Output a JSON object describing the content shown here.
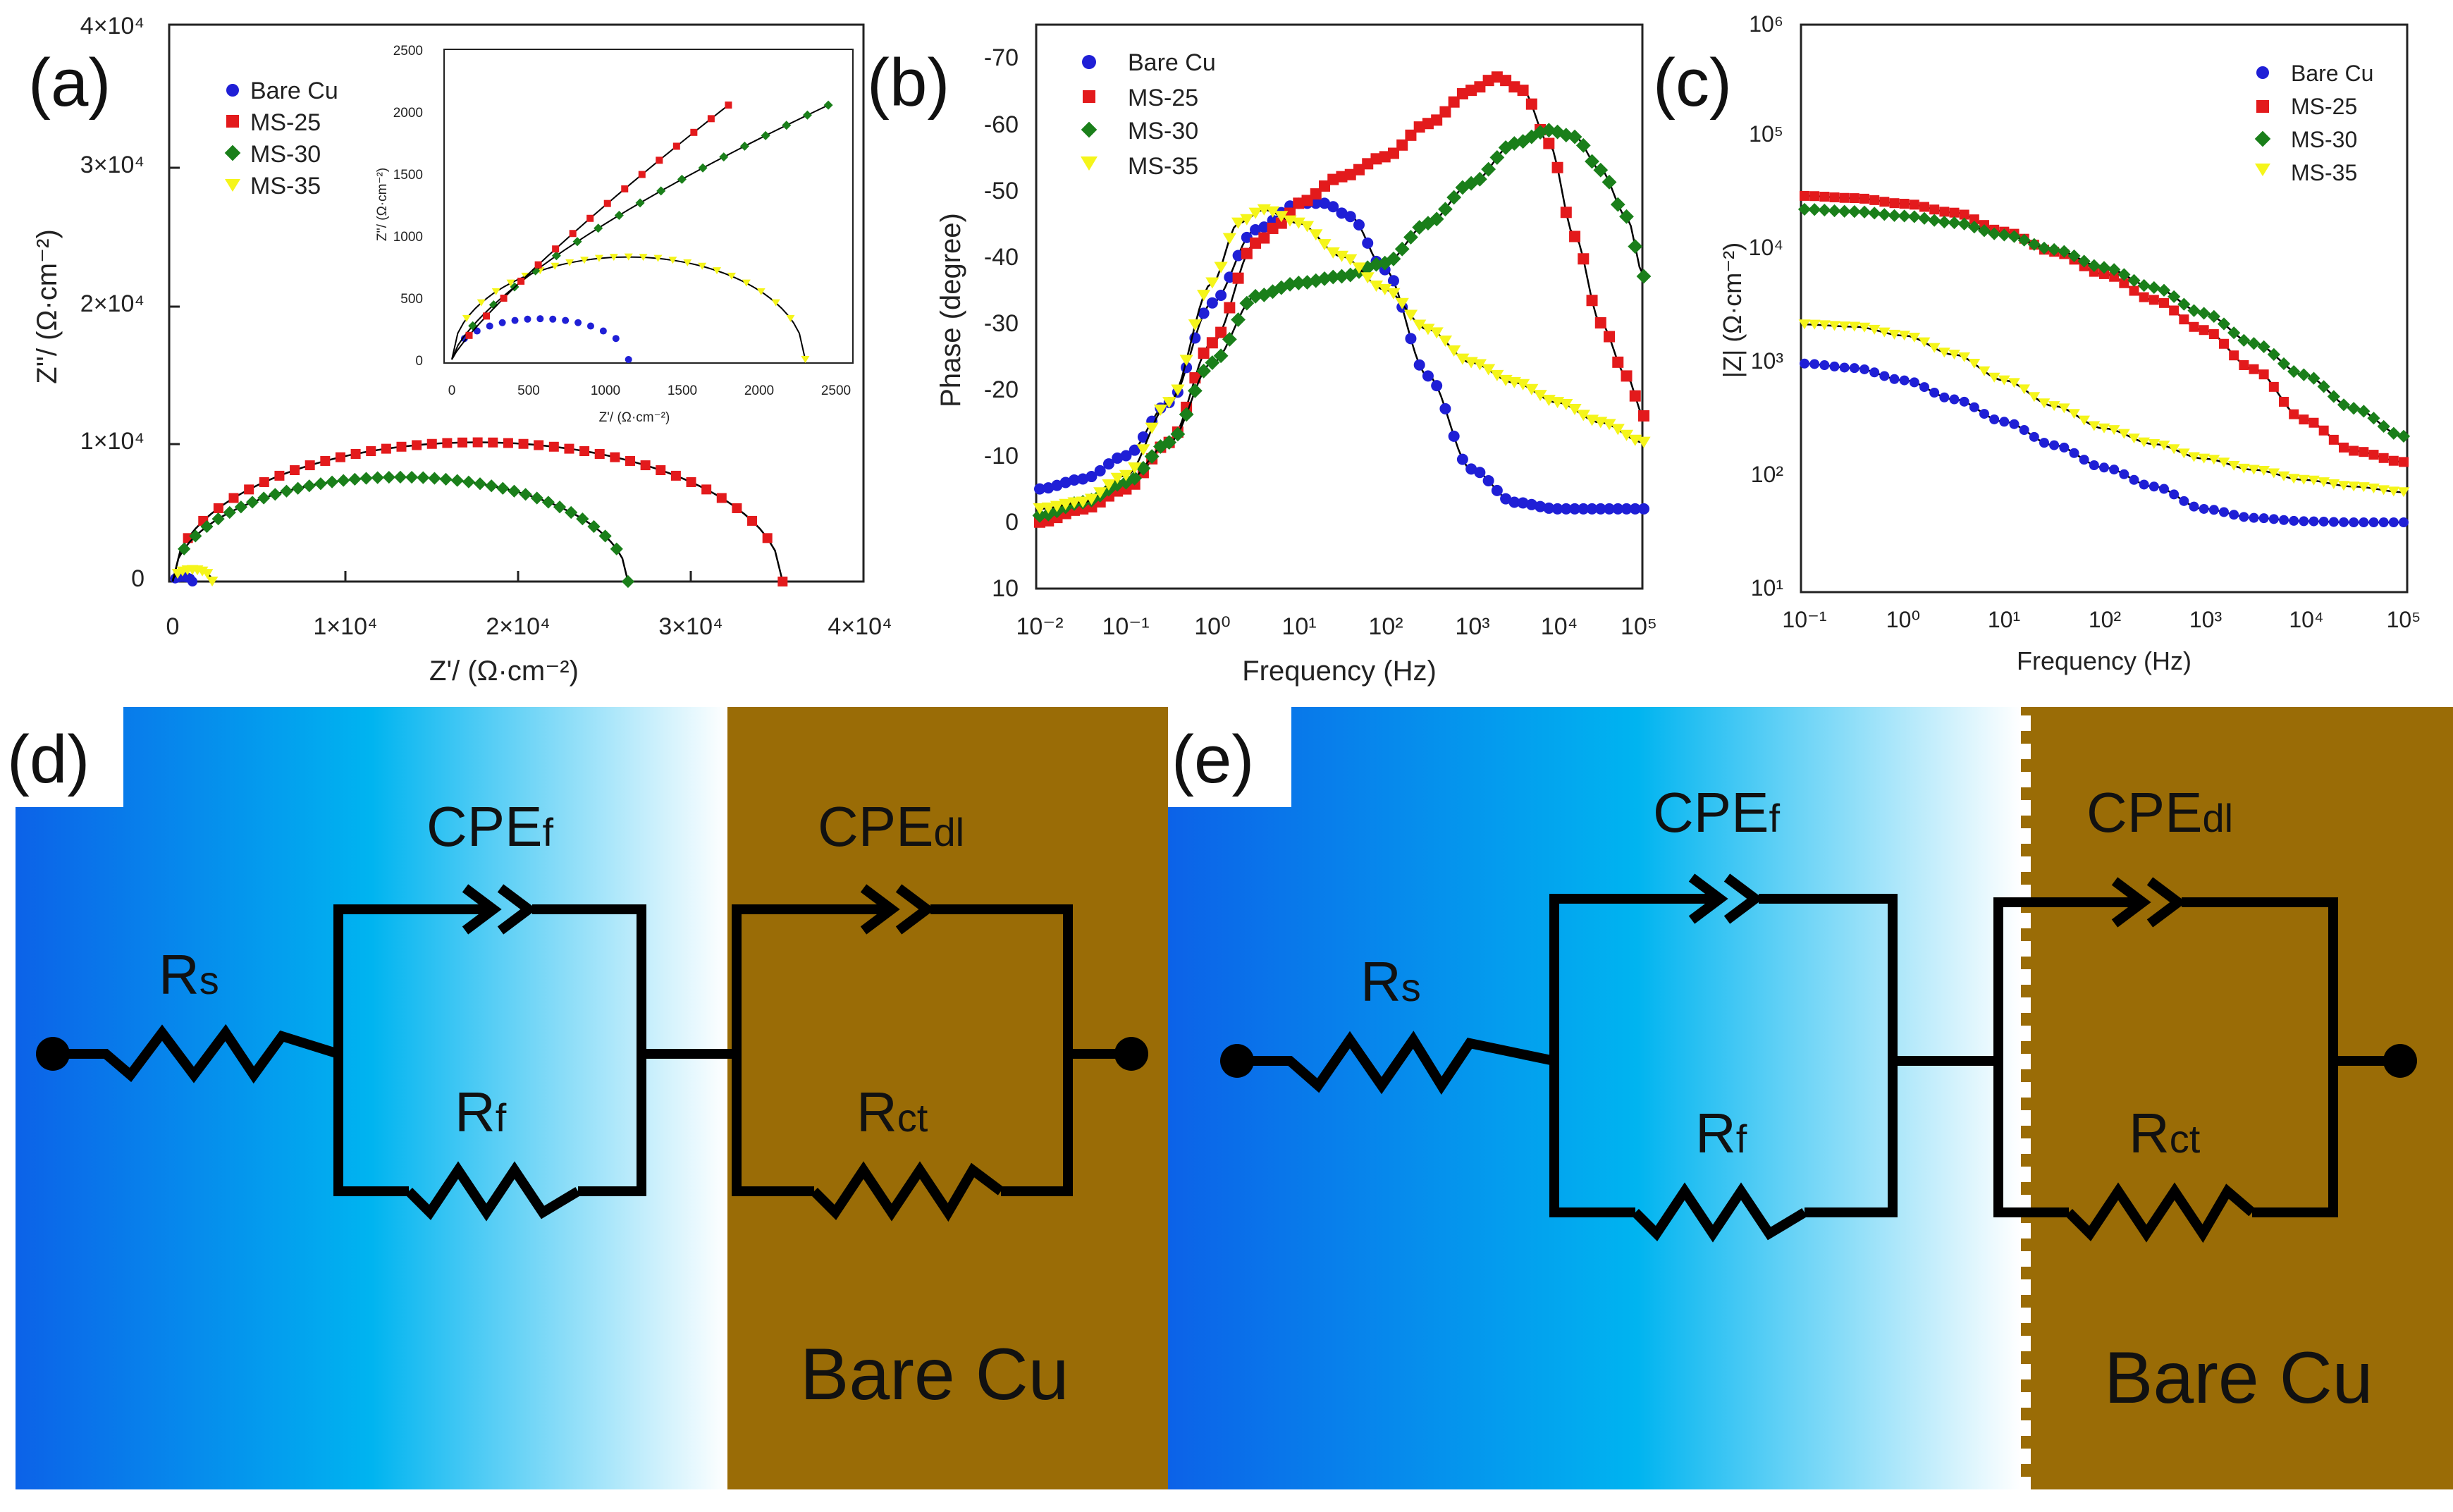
{
  "colors": {
    "bare": "#1f1fd6",
    "ms25": "#e31a1c",
    "ms30": "#1a7f1a",
    "ms35": "#f5f51a",
    "copper": "#9a6c06",
    "blue_dark": "#0c62e8",
    "blue_mid": "#00b4f0",
    "fit": "#000000"
  },
  "panels": {
    "a": {
      "tag": "(a)"
    },
    "b": {
      "tag": "(b)"
    },
    "c": {
      "tag": "(c)"
    },
    "d": {
      "tag": "(d)"
    },
    "e": {
      "tag": "(e)"
    }
  },
  "chart_data": [
    {
      "id": "a",
      "type": "scatter",
      "xlabel": "Z'/ (Ω·cm⁻²)",
      "ylabel": "Z''/ (Ω·cm⁻²)",
      "xlim": [
        0,
        40000
      ],
      "ylim": [
        0,
        40000
      ],
      "xticks": [
        "0",
        "1×10⁴",
        "2×10⁴",
        "3×10⁴",
        "4×10⁴"
      ],
      "yticks": [
        "0",
        "1×10⁴",
        "2×10⁴",
        "3×10⁴",
        "4×10⁴"
      ],
      "legend": [
        "Bare Cu",
        "MS-25",
        "MS-30",
        "MS-35"
      ],
      "series": [
        {
          "name": "Bare Cu",
          "kind": "arc",
          "x0": 0,
          "x1": 1150,
          "peak": 330
        },
        {
          "name": "MS-25",
          "kind": "arc",
          "x0": 0,
          "x1": 35500,
          "peak": 10000
        },
        {
          "name": "MS-30",
          "kind": "arc",
          "x0": 0,
          "x1": 26500,
          "peak": 7500
        },
        {
          "name": "MS-35",
          "kind": "arc",
          "x0": 0,
          "x1": 2300,
          "peak": 830
        }
      ],
      "inset": {
        "xlabel": "Z'/ (Ω·cm⁻²)",
        "ylabel": "Z''/ (Ω·cm⁻²)",
        "xlim": [
          0,
          2500
        ],
        "ylim": [
          0,
          2500
        ],
        "xticks": [
          "0",
          "500",
          "1000",
          "1500",
          "2000",
          "2500"
        ],
        "yticks": [
          "0",
          "500",
          "1000",
          "1500",
          "2000",
          "2500"
        ]
      }
    },
    {
      "id": "b",
      "type": "scatter",
      "xlabel": "Frequency (Hz)",
      "ylabel": "Phase (degree)",
      "xlim_log10": [
        -2,
        5
      ],
      "ylim": [
        10,
        -70
      ],
      "xticks": [
        "10⁻²",
        "10⁻¹",
        "10⁰",
        "10¹",
        "10²",
        "10³",
        "10⁴",
        "10⁵"
      ],
      "yticks": [
        "-70",
        "-60",
        "-50",
        "-40",
        "-30",
        "-20",
        "-10",
        "0",
        "10"
      ],
      "legend": [
        "Bare Cu",
        "MS-25",
        "MS-30",
        "MS-35"
      ],
      "series": [
        {
          "name": "Bare Cu",
          "logf": [
            -2,
            -1.5,
            -1,
            -0.5,
            0,
            0.5,
            1,
            1.3,
            1.6,
            2,
            2.5,
            3,
            3.5,
            4,
            4.5,
            5
          ],
          "phase": [
            -5,
            -6.5,
            -10,
            -18,
            -33,
            -44,
            -48,
            -48,
            -46,
            -38,
            -22,
            -8,
            -3,
            -2,
            -2,
            -2
          ]
        },
        {
          "name": "MS-25",
          "logf": [
            -2,
            -1.5,
            -1,
            -0.5,
            0,
            0.5,
            0.8,
            1,
            1.5,
            2,
            2.5,
            3,
            3.3,
            3.6,
            3.9,
            4.2,
            4.5,
            4.8,
            5
          ],
          "phase": [
            0,
            -2,
            -5,
            -12,
            -27,
            -42,
            -45,
            -48,
            -52,
            -55,
            -60,
            -65,
            -67,
            -65,
            -57,
            -43,
            -30,
            -22,
            -16
          ]
        },
        {
          "name": "MS-30",
          "logf": [
            -2,
            -1.5,
            -1,
            -0.5,
            0,
            0.5,
            1,
            1.5,
            2,
            2.5,
            3,
            3.5,
            3.9,
            4.2,
            4.5,
            4.8,
            5
          ],
          "phase": [
            -1,
            -3,
            -6,
            -12,
            -24,
            -34,
            -36,
            -37,
            -39,
            -45,
            -51,
            -57,
            -59,
            -58,
            -53,
            -46,
            -37
          ]
        },
        {
          "name": "MS-35",
          "logf": [
            -2,
            -1.5,
            -1,
            -0.5,
            0,
            0.3,
            0.6,
            1,
            1.5,
            2,
            2.5,
            3,
            3.5,
            4,
            4.5,
            5
          ],
          "phase": [
            -2,
            -3,
            -7,
            -18,
            -36,
            -45,
            -47,
            -45,
            -40,
            -35,
            -29,
            -24,
            -21,
            -18,
            -15,
            -12
          ]
        }
      ]
    },
    {
      "id": "c",
      "type": "scatter",
      "xlabel": "Frequency (Hz)",
      "ylabel": "|Z| (Ω·cm⁻²)",
      "xlim_log10": [
        -1,
        5
      ],
      "ylim_log10": [
        1,
        6
      ],
      "xticks": [
        "10⁻¹",
        "10⁰",
        "10¹",
        "10²",
        "10³",
        "10⁴",
        "10⁵"
      ],
      "yticks": [
        "10¹",
        "10²",
        "10³",
        "10⁴",
        "10⁵",
        "10⁶"
      ],
      "legend": [
        "Bare Cu",
        "MS-25",
        "MS-30",
        "MS-35"
      ],
      "series": [
        {
          "name": "Bare Cu",
          "logf": [
            -1,
            -0.5,
            0,
            0.5,
            1,
            1.5,
            2,
            2.5,
            3,
            3.5,
            4,
            4.5,
            5
          ],
          "logZ": [
            3.0,
            2.96,
            2.85,
            2.68,
            2.48,
            2.27,
            2.07,
            1.9,
            1.7,
            1.62,
            1.59,
            1.58,
            1.58
          ]
        },
        {
          "name": "MS-25",
          "logf": [
            -1,
            -0.5,
            0,
            0.5,
            1,
            1.5,
            2,
            2.5,
            3,
            3.5,
            4,
            4.5,
            5
          ],
          "logZ": [
            4.5,
            4.48,
            4.43,
            4.35,
            4.18,
            4.0,
            3.8,
            3.57,
            3.3,
            2.95,
            2.5,
            2.22,
            2.12
          ]
        },
        {
          "name": "MS-30",
          "logf": [
            -1,
            -0.5,
            0,
            0.5,
            1,
            1.5,
            2,
            2.5,
            3,
            3.5,
            4,
            4.5,
            5
          ],
          "logZ": [
            4.38,
            4.36,
            4.32,
            4.26,
            4.15,
            4.02,
            3.86,
            3.68,
            3.45,
            3.18,
            2.9,
            2.6,
            2.35
          ]
        },
        {
          "name": "MS-35",
          "logf": [
            -1,
            -0.5,
            0,
            0.5,
            1,
            1.5,
            2,
            2.5,
            3,
            3.5,
            4,
            4.5,
            5
          ],
          "logZ": [
            3.35,
            3.33,
            3.25,
            3.08,
            2.85,
            2.62,
            2.42,
            2.28,
            2.15,
            2.05,
            1.96,
            1.9,
            1.85
          ]
        }
      ]
    }
  ],
  "circuits": {
    "d": {
      "Rs": [
        "R",
        "s"
      ],
      "CPEf": [
        "CPE",
        "f"
      ],
      "Rf": [
        "R",
        "f"
      ],
      "CPEdl": [
        "CPE",
        "dl"
      ],
      "Rct": [
        "R",
        "ct"
      ],
      "substrate": "Bare Cu"
    },
    "e": {
      "Rs": [
        "R",
        "s"
      ],
      "CPEf": [
        "CPE",
        "f"
      ],
      "Rf": [
        "R",
        "f"
      ],
      "CPEdl": [
        "CPE",
        "dl"
      ],
      "Rct": [
        "R",
        "ct"
      ],
      "substrate": "Bare Cu"
    }
  }
}
